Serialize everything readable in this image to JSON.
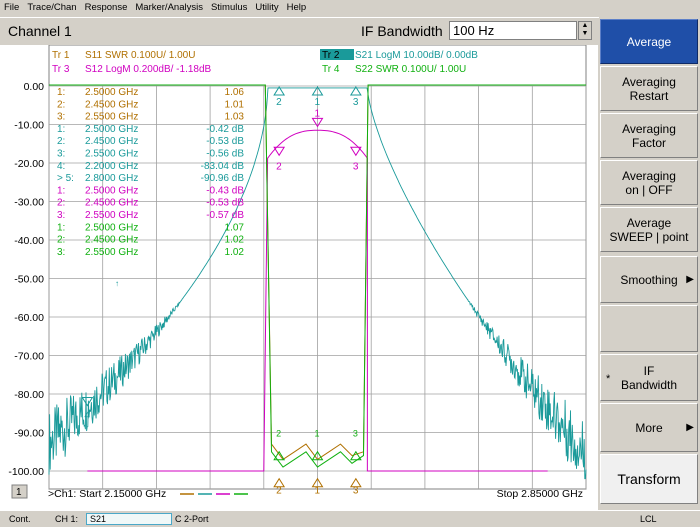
{
  "menu": [
    "File",
    "Trace/Chan",
    "Response",
    "Marker/Analysis",
    "Stimulus",
    "Utility",
    "Help"
  ],
  "channel_bar": {
    "title": "Channel 1",
    "field_label": "IF Bandwidth",
    "field_value": "100 Hz"
  },
  "traces": [
    {
      "id": "Tr 1",
      "desc": "S11 SWR 0.100U/  1.00U",
      "color": "#b07000"
    },
    {
      "id": "Tr 2",
      "desc": "S21 LogM 10.00dB/  0.00dB",
      "color": "#1a9a9a"
    },
    {
      "id": "Tr 3",
      "desc": "S12 LogM 0.200dB/  -1.18dB",
      "color": "#d000c0"
    },
    {
      "id": "Tr 4",
      "desc": "S22 SWR 0.100U/  1.00U",
      "color": "#10b010"
    }
  ],
  "y_ticks": [
    "0.00",
    "-10.00",
    "-20.00",
    "-30.00",
    "-40.00",
    "-50.00",
    "-60.00",
    "-70.00",
    "-80.00",
    "-90.00",
    "-100.00"
  ],
  "marker_table": [
    {
      "n": "1:",
      "f": "2.5000 GHz",
      "v": "1.06",
      "c": "#b07000"
    },
    {
      "n": "2:",
      "f": "2.4500 GHz",
      "v": "1.01",
      "c": "#b07000"
    },
    {
      "n": "3:",
      "f": "2.5500 GHz",
      "v": "1.03",
      "c": "#b07000"
    },
    {
      "n": "1:",
      "f": "2.5000 GHz",
      "v": "-0.42 dB",
      "c": "#1a9a9a"
    },
    {
      "n": "2:",
      "f": "2.4500 GHz",
      "v": "-0.53 dB",
      "c": "#1a9a9a"
    },
    {
      "n": "3:",
      "f": "2.5500 GHz",
      "v": "-0.56 dB",
      "c": "#1a9a9a"
    },
    {
      "n": "4:",
      "f": "2.2000 GHz",
      "v": "-83.04 dB",
      "c": "#1a9a9a"
    },
    {
      "n": "> 5:",
      "f": "2.8000 GHz",
      "v": "-90.96 dB",
      "c": "#1a9a9a"
    },
    {
      "n": "1:",
      "f": "2.5000 GHz",
      "v": "-0.43 dB",
      "c": "#d000c0"
    },
    {
      "n": "2:",
      "f": "2.4500 GHz",
      "v": "-0.53 dB",
      "c": "#d000c0"
    },
    {
      "n": "3:",
      "f": "2.5500 GHz",
      "v": "-0.57 dB",
      "c": "#d000c0"
    },
    {
      "n": "1:",
      "f": "2.5000 GHz",
      "v": "1.07",
      "c": "#10b010"
    },
    {
      "n": "2:",
      "f": "2.4500 GHz",
      "v": "1.02",
      "c": "#10b010"
    },
    {
      "n": "3:",
      "f": "2.5500 GHz",
      "v": "1.02",
      "c": "#10b010"
    }
  ],
  "bottom": {
    "channel_num": "1",
    "start": ">Ch1: Start  2.15000 GHz",
    "stop": "Stop  2.85000 GHz"
  },
  "softkeys": [
    {
      "l1": "Average",
      "l2": "",
      "active": true,
      "arrow": false
    },
    {
      "l1": "Averaging",
      "l2": "Restart",
      "active": false,
      "arrow": false
    },
    {
      "l1": "Averaging",
      "l2": "Factor",
      "active": false,
      "arrow": false
    },
    {
      "l1": "Averaging",
      "l2": "on | OFF",
      "active": false,
      "arrow": false
    },
    {
      "l1": "Average",
      "l2": "SWEEP | point",
      "active": false,
      "arrow": false
    },
    {
      "l1": "Smoothing",
      "l2": "",
      "active": false,
      "arrow": true
    },
    {
      "l1": "",
      "l2": "",
      "active": false,
      "arrow": false
    },
    {
      "l1": "IF",
      "l2": "Bandwidth",
      "active": false,
      "arrow": false,
      "star": "*"
    },
    {
      "l1": "More",
      "l2": "",
      "active": false,
      "arrow": true
    },
    {
      "l1": "Transform",
      "l2": "",
      "active": false,
      "arrow": false
    }
  ],
  "status": {
    "mode": "Cont.",
    "channel": "CH 1:",
    "param": "S21",
    "cal": "C  2-Port",
    "ref": "LCL"
  },
  "marker_labels": {
    "m1": "1",
    "m2": "2",
    "m3": "3",
    "m4": "4"
  }
}
